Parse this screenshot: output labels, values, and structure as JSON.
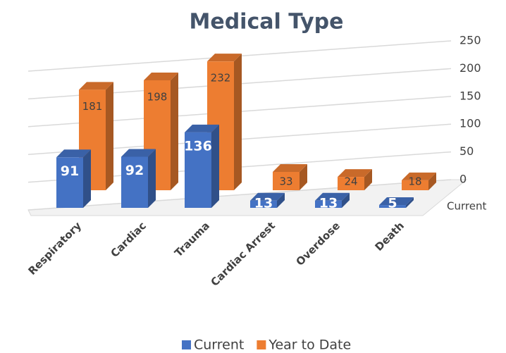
{
  "chart_data": {
    "type": "bar",
    "title": "Medical Type",
    "categories": [
      "Respiratory",
      "Cardiac",
      "Trauma",
      "Cardiac Arrest",
      "Overdose",
      "Death"
    ],
    "series": [
      {
        "name": "Current",
        "color": "#4472c4",
        "values": [
          91,
          92,
          136,
          13,
          13,
          5
        ]
      },
      {
        "name": "Year to Date",
        "color": "#ed7d31",
        "values": [
          181,
          198,
          232,
          33,
          24,
          18
        ]
      }
    ],
    "ylim": [
      0,
      250
    ],
    "yticks": [
      0,
      50,
      100,
      150,
      200,
      250
    ],
    "grid": true,
    "legend": "bottom"
  }
}
